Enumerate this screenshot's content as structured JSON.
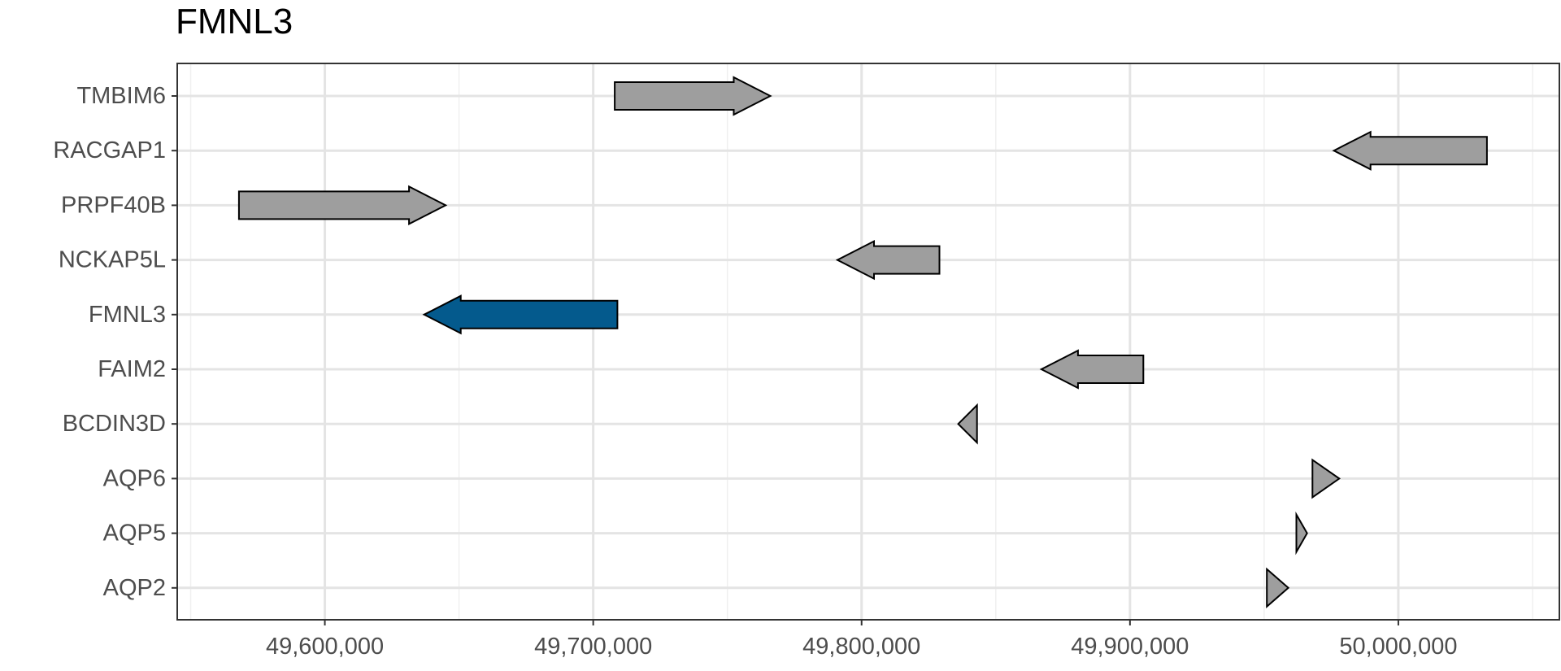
{
  "chart_data": {
    "type": "gene-track",
    "title": "FMNL3",
    "xlabel": "",
    "ylabel": "",
    "xlim": [
      49545000,
      50060000
    ],
    "x_ticks": [
      49600000,
      49700000,
      49800000,
      49900000,
      50000000
    ],
    "x_tick_labels": [
      "49,600,000",
      "49,700,000",
      "49,800,000",
      "49,900,000",
      "50,000,000"
    ],
    "grid": true,
    "colors": {
      "highlight": "#045a8d",
      "other": "#9e9e9e",
      "outline": "#000000"
    },
    "genes": [
      {
        "name": "TMBIM6",
        "start": 49708000,
        "end": 49766000,
        "strand": "+",
        "highlight": false
      },
      {
        "name": "RACGAP1",
        "start": 49976000,
        "end": 50033000,
        "strand": "-",
        "highlight": false
      },
      {
        "name": "PRPF40B",
        "start": 49568000,
        "end": 49645000,
        "strand": "+",
        "highlight": false
      },
      {
        "name": "NCKAP5L",
        "start": 49791000,
        "end": 49829000,
        "strand": "-",
        "highlight": false
      },
      {
        "name": "FMNL3",
        "start": 49637000,
        "end": 49709000,
        "strand": "-",
        "highlight": true
      },
      {
        "name": "FAIM2",
        "start": 49867000,
        "end": 49905000,
        "strand": "-",
        "highlight": false
      },
      {
        "name": "BCDIN3D",
        "start": 49836000,
        "end": 49843000,
        "strand": "-",
        "highlight": false
      },
      {
        "name": "AQP6",
        "start": 49968000,
        "end": 49978000,
        "strand": "+",
        "highlight": false
      },
      {
        "name": "AQP5",
        "start": 49962000,
        "end": 49966000,
        "strand": "+",
        "highlight": false
      },
      {
        "name": "AQP2",
        "start": 49951000,
        "end": 49959000,
        "strand": "+",
        "highlight": false
      }
    ]
  }
}
